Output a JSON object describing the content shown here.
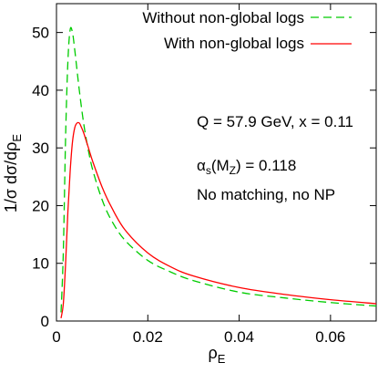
{
  "chart_data": {
    "type": "line",
    "xlabel": "ρ",
    "xlabel_sub": "E",
    "ylabel": "1/σ dσ/dρ",
    "ylabel_sub": "E",
    "xlim": [
      0,
      0.07
    ],
    "ylim": [
      0,
      55
    ],
    "x_ticks": [
      0,
      0.02,
      0.04,
      0.06
    ],
    "x_tick_labels": [
      "0",
      "0.02",
      "0.04",
      "0.06"
    ],
    "y_ticks": [
      0,
      10,
      20,
      30,
      40,
      50
    ],
    "y_tick_labels": [
      "0",
      "10",
      "20",
      "30",
      "40",
      "50"
    ],
    "grid": false,
    "legend_position": "top-right",
    "series": [
      {
        "name": "Without non-global logs",
        "color": "#00cc00",
        "dash": "dashed",
        "x": [
          0.001,
          0.0015,
          0.002,
          0.0025,
          0.003,
          0.0035,
          0.004,
          0.005,
          0.006,
          0.007,
          0.008,
          0.01,
          0.012,
          0.015,
          0.02,
          0.025,
          0.03,
          0.04,
          0.05,
          0.06,
          0.07
        ],
        "y": [
          1.5,
          12,
          32,
          45,
          50.5,
          50,
          47,
          40,
          34,
          29.5,
          26,
          21,
          17.5,
          14,
          10.5,
          8.5,
          7,
          5,
          4,
          3.2,
          2.6
        ]
      },
      {
        "name": "With non-global logs",
        "color": "#ff0000",
        "dash": "solid",
        "x": [
          0.001,
          0.0015,
          0.002,
          0.0025,
          0.003,
          0.0035,
          0.004,
          0.0045,
          0.005,
          0.0055,
          0.006,
          0.007,
          0.008,
          0.01,
          0.012,
          0.015,
          0.02,
          0.025,
          0.03,
          0.04,
          0.05,
          0.06,
          0.07
        ],
        "y": [
          0.5,
          3,
          10,
          19,
          26,
          31,
          33.5,
          34.3,
          34.3,
          33.5,
          32.5,
          30,
          27.5,
          23.2,
          19.8,
          15.8,
          11.8,
          9.4,
          7.8,
          5.8,
          4.6,
          3.7,
          3.0
        ]
      }
    ],
    "annotations": [
      {
        "id": "kin",
        "text": "Q = 57.9 GeV,  x = 0.11"
      },
      {
        "id": "alpha",
        "alpha": "α",
        "s": "s",
        "paren": "(M",
        "z": "Z",
        "rest": ") = 0.118"
      },
      {
        "id": "note",
        "text": "No matching, no NP"
      }
    ]
  }
}
